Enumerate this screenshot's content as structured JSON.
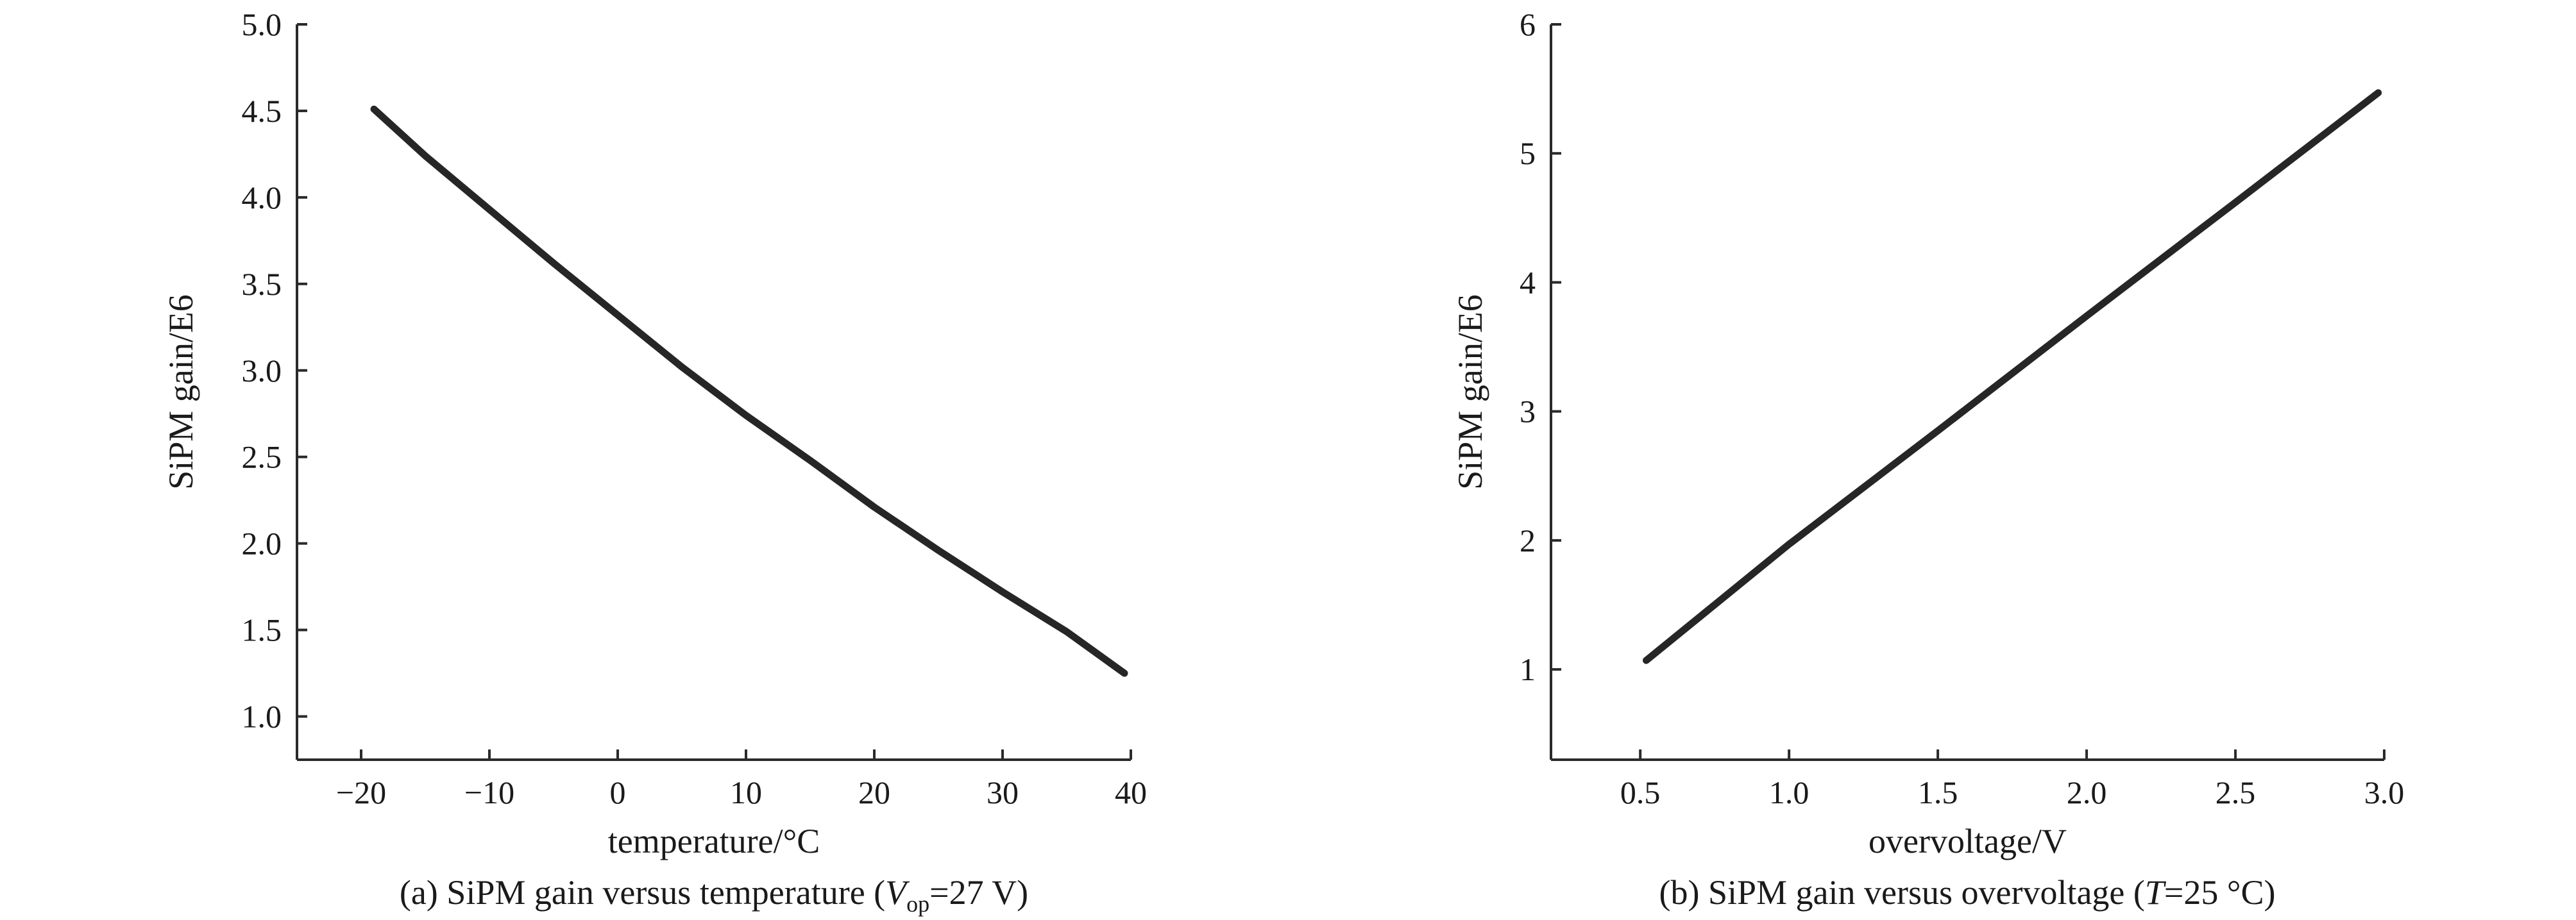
{
  "chart_data": [
    {
      "type": "line",
      "xlabel": "temperature/°C",
      "ylabel": "SiPM gain/E6",
      "xlim": [
        -25,
        40
      ],
      "ylim": [
        0.75,
        5.0
      ],
      "xticks": [
        -20,
        -10,
        0,
        10,
        20,
        30,
        40
      ],
      "xtick_labels": [
        "−20",
        "−10",
        "0",
        "10",
        "20",
        "30",
        "40"
      ],
      "yticks": [
        1.0,
        1.5,
        2.0,
        2.5,
        3.0,
        3.5,
        4.0,
        4.5,
        5.0
      ],
      "ytick_labels": [
        "1.0",
        "1.5",
        "2.0",
        "2.5",
        "3.0",
        "3.5",
        "4.0",
        "4.5",
        "5.0"
      ],
      "caption": {
        "prefix": "(a) SiPM gain versus temperature (",
        "var": "V",
        "sub": "op",
        "suffix": "=27 V)"
      },
      "series": [
        {
          "x": [
            -19,
            -15,
            -10,
            -5,
            0,
            5,
            10,
            15,
            20,
            25,
            30,
            35,
            39.5
          ],
          "y": [
            4.51,
            4.24,
            3.93,
            3.62,
            3.32,
            3.02,
            2.74,
            2.48,
            2.21,
            1.96,
            1.72,
            1.49,
            1.25
          ]
        }
      ]
    },
    {
      "type": "line",
      "xlabel": "overvoltage/V",
      "ylabel": "SiPM gain/E6",
      "xlim": [
        0.2,
        3.0
      ],
      "ylim": [
        0.3,
        6.0
      ],
      "xticks": [
        0.5,
        1.0,
        1.5,
        2.0,
        2.5,
        3.0
      ],
      "xtick_labels": [
        "0.5",
        "1.0",
        "1.5",
        "2.0",
        "2.5",
        "3.0"
      ],
      "yticks": [
        1,
        2,
        3,
        4,
        5,
        6
      ],
      "ytick_labels": [
        "1",
        "2",
        "3",
        "4",
        "5",
        "6"
      ],
      "caption": {
        "prefix": "(b) SiPM gain versus overvoltage (",
        "var": "T",
        "sub": "",
        "suffix": "=25 °C)"
      },
      "series": [
        {
          "x": [
            0.52,
            1.0,
            1.5,
            2.0,
            2.5,
            2.98
          ],
          "y": [
            1.07,
            1.97,
            2.85,
            3.74,
            4.62,
            5.47
          ]
        }
      ]
    }
  ]
}
